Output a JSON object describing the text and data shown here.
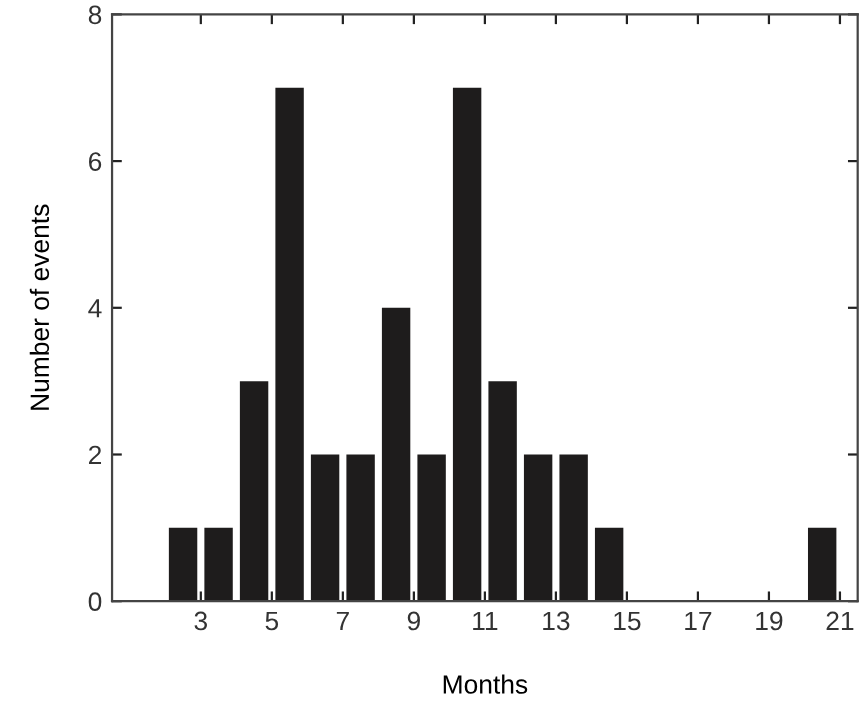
{
  "chart_data": {
    "type": "histogram",
    "xlabel": "Months",
    "ylabel": "Number of events",
    "bins": [
      2,
      3,
      4,
      5,
      6,
      7,
      8,
      9,
      10,
      11,
      12,
      13,
      14,
      15,
      16,
      17,
      18,
      19,
      20,
      21
    ],
    "values": [
      1,
      1,
      3,
      7,
      2,
      2,
      4,
      2,
      7,
      3,
      2,
      2,
      1,
      0,
      0,
      0,
      0,
      0,
      1
    ],
    "color": "#1e1c1c",
    "xlim": [
      0.5,
      21.5
    ],
    "xticks": [
      3,
      5,
      7,
      9,
      11,
      13,
      15,
      17,
      19,
      21
    ],
    "ylim": [
      0,
      8
    ],
    "yticks": [
      0,
      2,
      4,
      6,
      8
    ],
    "grid": false
  }
}
